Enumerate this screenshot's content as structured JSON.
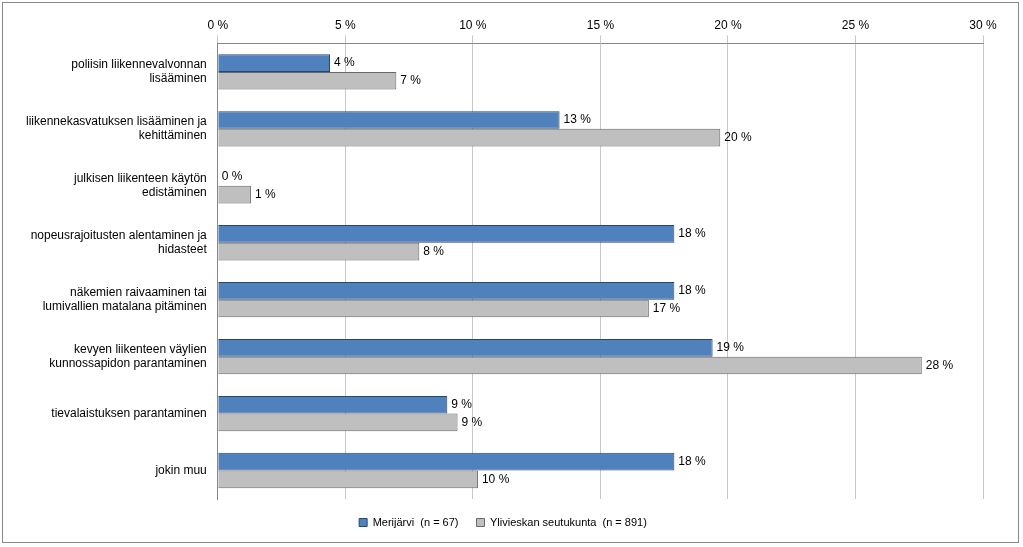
{
  "chart_data": {
    "type": "bar",
    "orientation": "horizontal",
    "categories": [
      "poliisin liikennevalvonnan lisääminen",
      "liikennekasvatuksen lisääminen ja kehittäminen",
      "julkisen liikenteen käytön edistäminen",
      "nopeusrajoitusten alentaminen ja hidasteet",
      "näkemien raivaaminen tai lumivallien matalana pitäminen",
      "kevyen liikenteen väylien kunnossapidon parantaminen",
      "tievalaistuksen parantaminen",
      "jokin muu"
    ],
    "series": [
      {
        "name": "Merijärvi  (n = 67)",
        "color": "#4f81bd",
        "values": [
          4.4,
          13.4,
          0,
          17.9,
          17.9,
          19.4,
          9,
          17.9
        ],
        "value_labels": [
          "4 %",
          "13 %",
          "0 %",
          "18 %",
          "18 %",
          "19 %",
          "9 %",
          "18 %"
        ]
      },
      {
        "name": "Ylivieskan seutukunta  (n = 891)",
        "color": "#bfbfbf",
        "values": [
          7,
          19.7,
          1.3,
          7.9,
          16.9,
          27.6,
          9.4,
          10.2
        ],
        "value_labels": [
          "7 %",
          "20 %",
          "1 %",
          "8 %",
          "17 %",
          "28 %",
          "9 %",
          "10 %"
        ]
      }
    ],
    "xlim": [
      0,
      30
    ],
    "xticks": [
      {
        "value": 0,
        "label": "0 %"
      },
      {
        "value": 5,
        "label": "5 %"
      },
      {
        "value": 10,
        "label": "10 %"
      },
      {
        "value": 15,
        "label": "15 %"
      },
      {
        "value": 20,
        "label": "20 %"
      },
      {
        "value": 25,
        "label": "25 %"
      },
      {
        "value": 30,
        "label": "30 %"
      }
    ],
    "grid": true,
    "legend": "bottom",
    "data_labels": true
  }
}
